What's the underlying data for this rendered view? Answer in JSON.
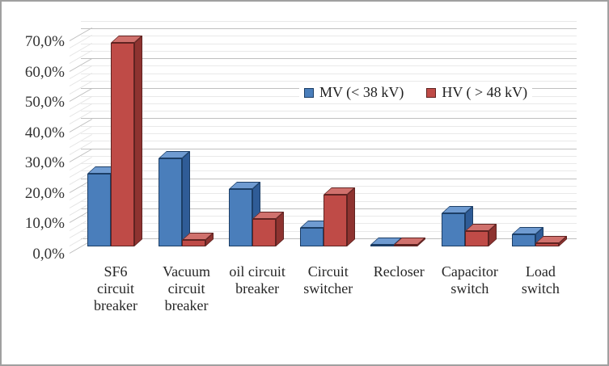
{
  "figure": {
    "kind": "excel-style 3D clustered column chart",
    "background": "#ffffff",
    "border": "#a0a0a0"
  },
  "colors": {
    "grid_major": "#c0c0c0",
    "grid_minor": "#e9e9e9",
    "diag_major": "#bdbdbd",
    "diag_minor": "#e4e4e4",
    "axis_text": "#333333",
    "category_text": "#262626",
    "mv_front": "#4a7ebb",
    "mv_top": "#6f9bd1",
    "mv_side": "#2f5c97",
    "mv_edge": "#1c3e66",
    "hv_front": "#bf4b47",
    "hv_top": "#d0716d",
    "hv_side": "#8e3330",
    "hv_edge": "#5f2321"
  },
  "y_axis": {
    "tick_labels": [
      "70,0%",
      "60,0%",
      "50,0%",
      "40,0%",
      "30,0%",
      "20,0%",
      "10,0%",
      "0,0%"
    ]
  },
  "legend": {
    "items": [
      {
        "label": "MV (< 38 kV)",
        "series": "mv"
      },
      {
        "label": "HV ( > 48 kV)",
        "series": "hv"
      }
    ]
  },
  "chart_data": {
    "type": "bar",
    "style": "3d-clustered-column",
    "title": "",
    "xlabel": "",
    "ylabel": "",
    "unit": "percent",
    "categories": [
      "SF6 circuit breaker",
      "Vacuum circuit breaker",
      "oil circuit breaker",
      "Circuit switcher",
      "Recloser",
      "Capacitor switch",
      "Load switch"
    ],
    "category_label_lines": [
      [
        "SF6",
        "circuit",
        "breaker"
      ],
      [
        "Vacuum",
        "circuit",
        "breaker"
      ],
      [
        "oil circuit",
        "breaker"
      ],
      [
        "Circuit",
        "switcher"
      ],
      [
        "Recloser"
      ],
      [
        "Capacitor",
        "switch"
      ],
      [
        "Load",
        "switch"
      ]
    ],
    "series": [
      {
        "name": "MV (< 38 kV)",
        "key": "mv",
        "color": "#4a7ebb",
        "values": [
          24,
          29,
          19,
          6,
          0.5,
          11,
          4
        ]
      },
      {
        "name": "HV ( > 48 kV)",
        "key": "hv",
        "color": "#bf4b47",
        "values": [
          67,
          2,
          9,
          17,
          0.5,
          5,
          1
        ]
      }
    ],
    "ylim": [
      0,
      70
    ],
    "y_tick_step": 10,
    "y_minor_step": 2.5,
    "y_tick_format": "comma-decimal-percent",
    "grid": true,
    "legend_position": "inside-top"
  }
}
